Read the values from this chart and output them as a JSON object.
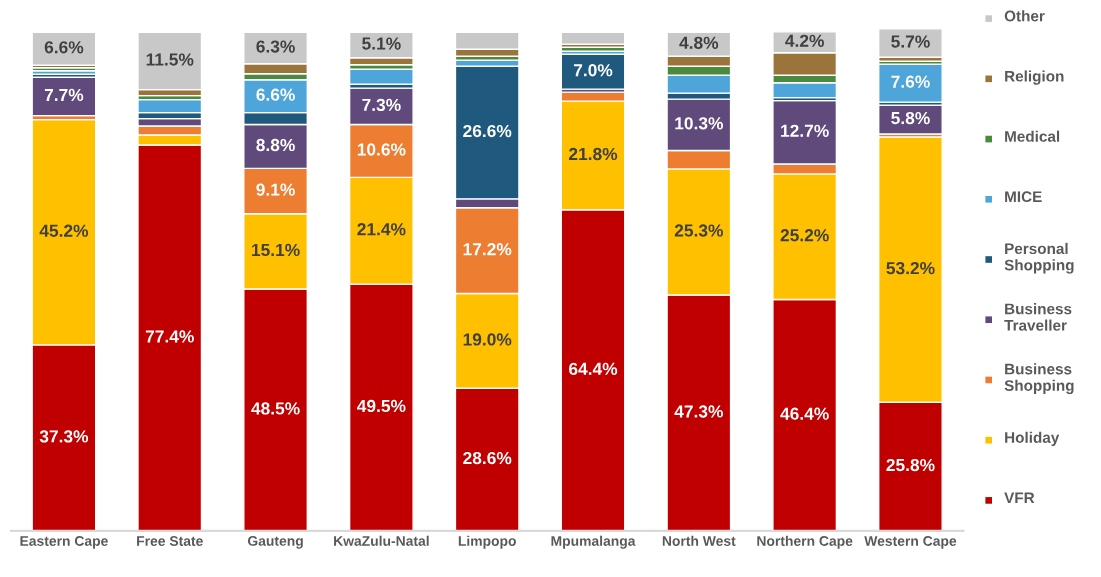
{
  "chart_data": {
    "type": "bar",
    "stacked": true,
    "legend": "right",
    "grid": false,
    "tick_labels": "x",
    "categories": [
      "Eastern Cape",
      "Free State",
      "Gauteng",
      "KwaZulu-Natal",
      "Limpopo",
      "Mpumalanga",
      "North West",
      "Northern Cape",
      "Western Cape"
    ],
    "series": [
      {
        "name": "VFR",
        "color": "#c00000",
        "values": [
          37.3,
          77.4,
          48.5,
          49.5,
          28.6,
          64.4,
          47.3,
          46.4,
          25.8
        ],
        "value_labels": [
          "37.3%",
          "77.4%",
          "48.5%",
          "49.5%",
          "28.6%",
          "64.4%",
          "47.3%",
          "46.4%",
          "25.8%"
        ]
      },
      {
        "name": "Holiday",
        "color": "#ffc000",
        "values": [
          45.2,
          2.0,
          15.1,
          21.4,
          19.0,
          21.8,
          25.3,
          25.2,
          53.2
        ],
        "value_labels": [
          "45.2%",
          null,
          "15.1%",
          "21.4%",
          "19.0%",
          "21.8%",
          "25.3%",
          "25.2%",
          "53.2%"
        ]
      },
      {
        "name": "Business Shopping",
        "color": "#ed7d31",
        "values": [
          0.8,
          1.8,
          9.1,
          10.6,
          17.2,
          1.8,
          3.7,
          2.0,
          0.6
        ],
        "value_labels": [
          null,
          null,
          "9.1%",
          "10.6%",
          "17.2%",
          null,
          null,
          null,
          null
        ]
      },
      {
        "name": "Business Traveller",
        "color": "#604a7b",
        "values": [
          7.7,
          1.5,
          8.8,
          7.3,
          1.8,
          0.6,
          10.3,
          12.7,
          5.8
        ],
        "value_labels": [
          "7.7%",
          null,
          "8.8%",
          "7.3%",
          null,
          null,
          "10.3%",
          "12.7%",
          "5.8%"
        ]
      },
      {
        "name": "Personal Shopping",
        "color": "#1f5a7e",
        "values": [
          0.6,
          1.2,
          2.4,
          0.8,
          26.6,
          7.0,
          1.2,
          0.6,
          0.6
        ],
        "value_labels": [
          null,
          null,
          null,
          null,
          "26.6%",
          "7.0%",
          null,
          null,
          null
        ]
      },
      {
        "name": "MICE",
        "color": "#4ea5d9",
        "values": [
          0.7,
          2.6,
          6.6,
          3.0,
          1.2,
          0.6,
          3.6,
          3.0,
          7.6
        ],
        "value_labels": [
          null,
          null,
          "6.6%",
          null,
          null,
          null,
          null,
          null,
          "7.6%"
        ]
      },
      {
        "name": "Medical",
        "color": "#4a8a3f",
        "values": [
          0.6,
          0.8,
          1.2,
          0.9,
          0.8,
          0.8,
          1.8,
          1.5,
          0.6
        ],
        "value_labels": [
          null,
          null,
          null,
          null,
          null,
          null,
          null,
          null,
          null
        ]
      },
      {
        "name": "Religion",
        "color": "#9b743c",
        "values": [
          0.5,
          1.2,
          2.0,
          1.4,
          1.4,
          0.6,
          2.0,
          4.5,
          0.8
        ],
        "value_labels": [
          null,
          null,
          null,
          null,
          null,
          null,
          null,
          null,
          null
        ]
      },
      {
        "name": "Other",
        "color": "#c8c8c8",
        "values": [
          6.6,
          11.5,
          6.3,
          5.1,
          3.4,
          2.4,
          4.8,
          4.2,
          5.7
        ],
        "value_labels": [
          "6.6%",
          "11.5%",
          "6.3%",
          "5.1%",
          null,
          null,
          "4.8%",
          "4.2%",
          "5.7%"
        ]
      }
    ]
  }
}
